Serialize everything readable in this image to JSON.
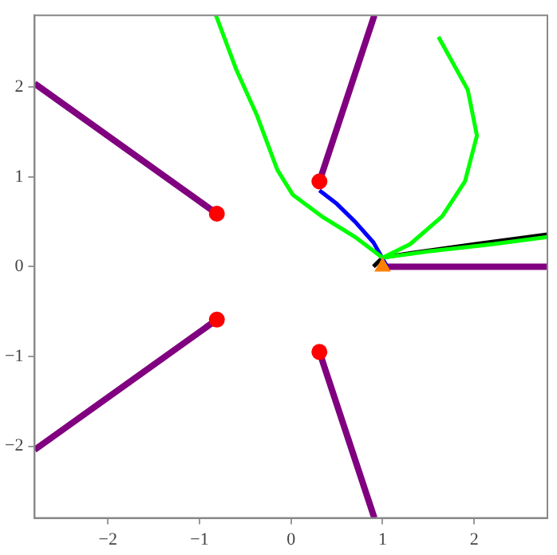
{
  "chart_data": {
    "type": "line",
    "xlim": [
      -2.8,
      2.8
    ],
    "ylim": [
      -2.8,
      2.8
    ],
    "xticks": [
      -2,
      -1,
      0,
      1,
      2
    ],
    "yticks": [
      -2,
      -1,
      0,
      1,
      2
    ],
    "marker": "none",
    "series": [
      {
        "color": "#00ff00",
        "x": [
          -0.82,
          -0.6,
          -0.37,
          -0.15,
          0.02,
          0.35,
          0.7,
          1.0
        ],
        "values": [
          2.8,
          2.2,
          1.68,
          1.08,
          0.8,
          0.55,
          0.33,
          0.1
        ]
      },
      {
        "color": "#00ff00",
        "x": [
          1.0,
          1.3,
          1.65,
          1.9,
          2.03,
          1.93,
          1.61
        ],
        "values": [
          0.1,
          0.25,
          0.56,
          0.95,
          1.46,
          1.97,
          2.56
        ]
      },
      {
        "color": "#00ff00",
        "x": [
          1.0,
          1.5,
          2.2,
          2.8
        ],
        "values": [
          0.1,
          0.17,
          0.25,
          0.33
        ]
      },
      {
        "color": "#0000ff",
        "x": [
          0.31,
          0.5,
          0.7,
          0.9,
          1.05
        ],
        "values": [
          0.85,
          0.7,
          0.5,
          0.27,
          0.0
        ]
      },
      {
        "color": "#000000",
        "x": [
          0.9,
          1.0,
          1.3,
          2.0,
          2.8
        ],
        "values": [
          0.0,
          0.1,
          0.15,
          0.25,
          0.36
        ]
      },
      {
        "color": "#800080",
        "x": [
          -0.81,
          -2.8
        ],
        "values": [
          0.59,
          2.04
        ]
      },
      {
        "color": "#800080",
        "x": [
          -0.81,
          -2.8
        ],
        "values": [
          -0.59,
          -2.04
        ]
      },
      {
        "color": "#800080",
        "x": [
          0.31,
          0.91
        ],
        "values": [
          0.95,
          2.8
        ]
      },
      {
        "color": "#800080",
        "x": [
          0.31,
          0.91
        ],
        "values": [
          -0.95,
          -2.8
        ]
      },
      {
        "color": "#800080",
        "x": [
          1.05,
          2.8
        ],
        "values": [
          0.0,
          0.0
        ]
      },
      {
        "type": "scatter",
        "marker": "circle",
        "color": "#ff0000",
        "x": [
          -0.81,
          -0.81,
          0.31,
          0.31
        ],
        "values": [
          0.59,
          -0.59,
          0.95,
          -0.95
        ]
      },
      {
        "type": "scatter",
        "marker": "triangle",
        "color": "#ff8000",
        "x": [
          1.0
        ],
        "values": [
          0.0
        ]
      }
    ]
  }
}
